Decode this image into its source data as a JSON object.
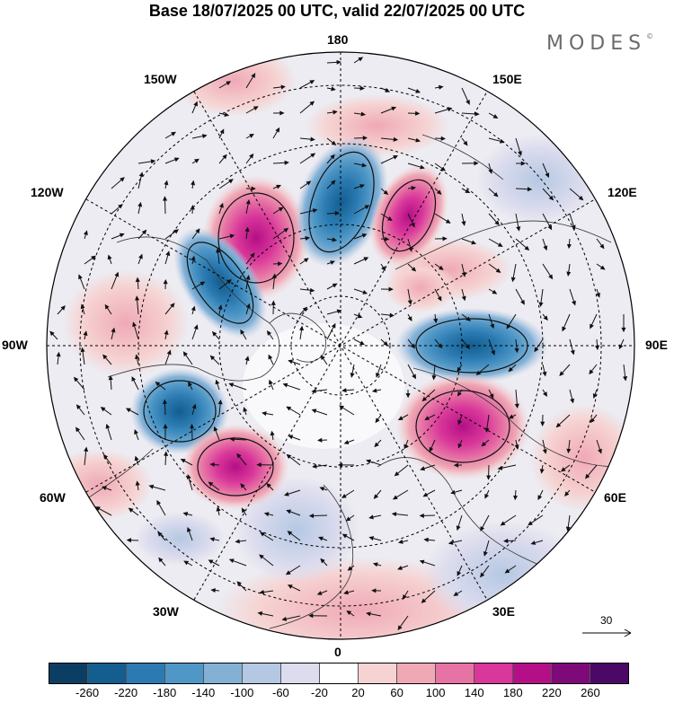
{
  "header": {
    "title": "Base 18/07/2025 00 UTC, valid 22/07/2025 00 UTC",
    "brand": "MODES",
    "brand_mark": "©"
  },
  "map": {
    "projection": "north polar stereographic",
    "longitude_labels": {
      "top": "180",
      "bottom": "0",
      "left": "90W",
      "right": "90E",
      "upper_left_1": "150W",
      "upper_left_2": "120W",
      "upper_right_1": "150E",
      "upper_right_2": "120E",
      "lower_left_1": "60W",
      "lower_left_2": "30W",
      "lower_right_1": "60E",
      "lower_right_2": "30E"
    },
    "reference_vector": "30",
    "anomaly_centers": [
      {
        "sign": "positive",
        "strength": "strong",
        "region": "Gulf of Alaska / NE Pacific"
      },
      {
        "sign": "negative",
        "strength": "strong",
        "region": "Bering Sea"
      },
      {
        "sign": "positive",
        "strength": "strong",
        "region": "East Siberia"
      },
      {
        "sign": "negative",
        "strength": "moderate",
        "region": "Canada west"
      },
      {
        "sign": "negative",
        "strength": "moderate",
        "region": "Western Siberia 90E"
      },
      {
        "sign": "positive",
        "strength": "strong",
        "region": "Central Asia 60E"
      },
      {
        "sign": "negative",
        "strength": "strong",
        "region": "Labrador / Hudson"
      },
      {
        "sign": "positive",
        "strength": "strong",
        "region": "North Atlantic 50W"
      },
      {
        "sign": "positive",
        "strength": "weak",
        "region": "North Africa"
      }
    ]
  },
  "colorbar": {
    "ticks": [
      "-260",
      "-220",
      "-180",
      "-140",
      "-100",
      "-60",
      "-20",
      "20",
      "60",
      "100",
      "140",
      "180",
      "220",
      "260"
    ],
    "colors": [
      "#0c3e63",
      "#145d8f",
      "#2b7bb2",
      "#4f97c6",
      "#83b1d6",
      "#b5c8e3",
      "#dcdcee",
      "#ffffff",
      "#f6d3d2",
      "#efa9b6",
      "#e673a4",
      "#d9379a",
      "#b40f86",
      "#7d0a78",
      "#4c0866"
    ]
  }
}
